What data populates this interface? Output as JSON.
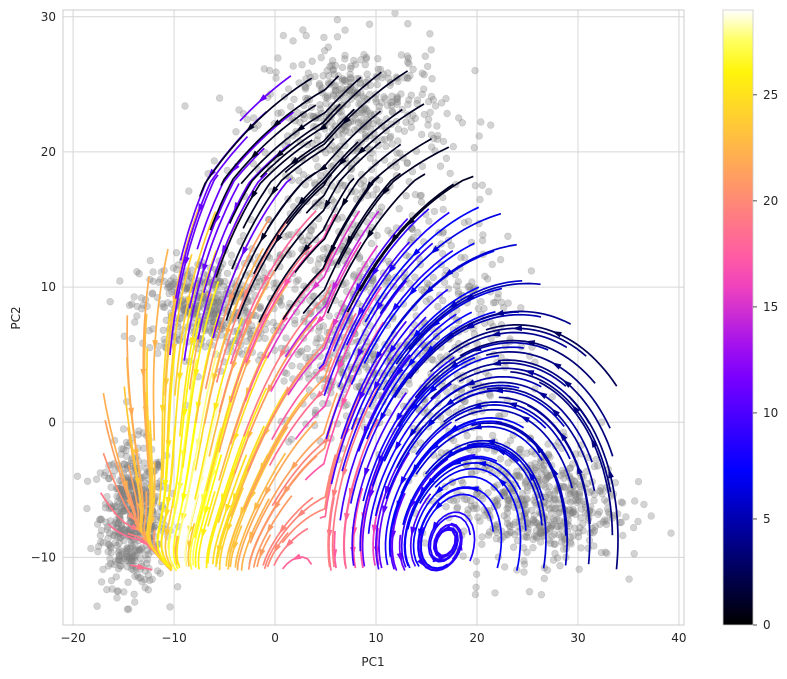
{
  "chart_data": {
    "type": "scatter",
    "subtype": "streamplot-over-scatter",
    "title": "",
    "xlabel": "PC1",
    "ylabel": "PC2",
    "xlim": [
      -21,
      40.5
    ],
    "ylim": [
      -15,
      30.5
    ],
    "x_ticks": [
      -20,
      -10,
      0,
      10,
      20,
      30,
      40
    ],
    "y_ticks": [
      -10,
      0,
      10,
      20,
      30
    ],
    "grid": true,
    "scatter_color": "#808080",
    "scatter_clusters": [
      {
        "cx": -14,
        "cy": -7,
        "sx": 1.6,
        "sy": 2.6,
        "n": 520
      },
      {
        "cx": -7,
        "cy": 8.5,
        "sx": 3.2,
        "sy": 1.8,
        "n": 420
      },
      {
        "cx": 8,
        "cy": 23,
        "sx": 4.5,
        "sy": 2.5,
        "n": 420
      },
      {
        "cx": 5,
        "cy": 12,
        "sx": 4.5,
        "sy": 4.0,
        "n": 320
      },
      {
        "cx": 9,
        "cy": 4,
        "sx": 4.5,
        "sy": 2.5,
        "n": 260
      },
      {
        "cx": 26,
        "cy": -6,
        "sx": 4.0,
        "sy": 2.2,
        "n": 520
      },
      {
        "cx": 18,
        "cy": 6,
        "sx": 3.0,
        "sy": 6.0,
        "n": 260
      }
    ],
    "colorbar": {
      "cmap": "gnuplot2",
      "min": 0,
      "max": 29,
      "ticks": [
        0,
        5,
        10,
        15,
        20,
        25
      ]
    }
  }
}
